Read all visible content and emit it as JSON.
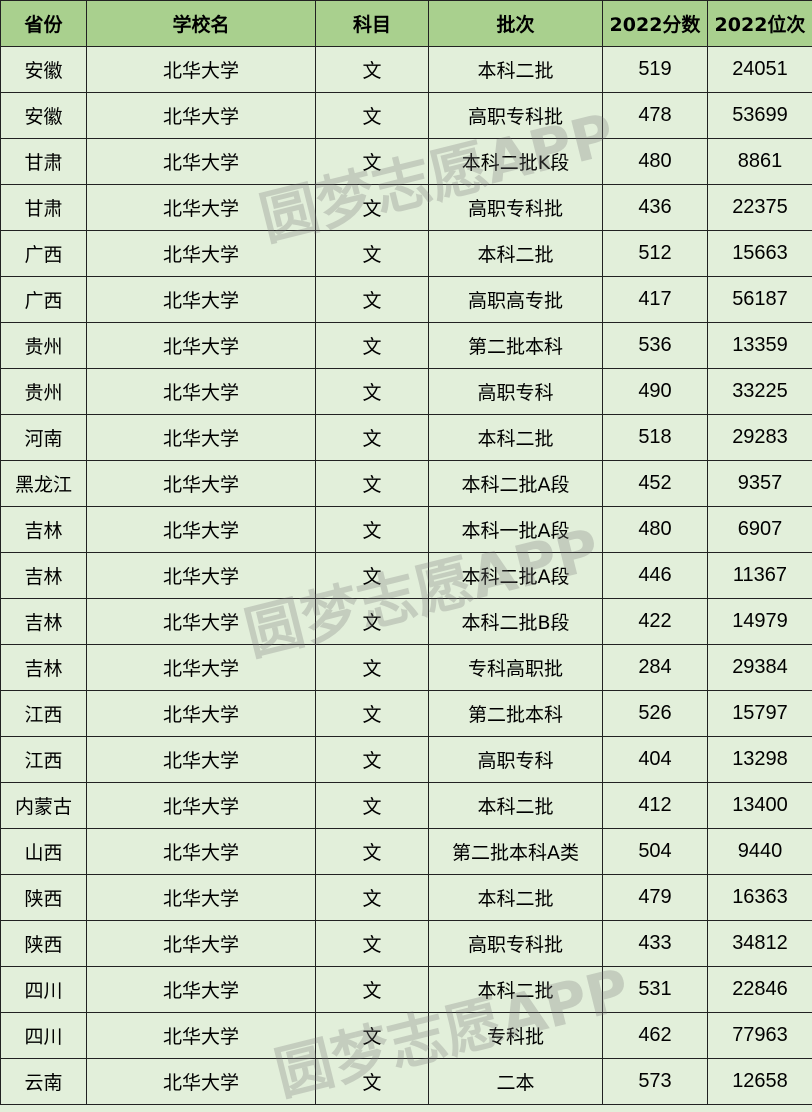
{
  "headers": [
    "省份",
    "学校名",
    "科目",
    "批次",
    "2022分数",
    "2022位次"
  ],
  "rows": [
    [
      "安徽",
      "北华大学",
      "文",
      "本科二批",
      "519",
      "24051"
    ],
    [
      "安徽",
      "北华大学",
      "文",
      "高职专科批",
      "478",
      "53699"
    ],
    [
      "甘肃",
      "北华大学",
      "文",
      "本科二批K段",
      "480",
      "8861"
    ],
    [
      "甘肃",
      "北华大学",
      "文",
      "高职专科批",
      "436",
      "22375"
    ],
    [
      "广西",
      "北华大学",
      "文",
      "本科二批",
      "512",
      "15663"
    ],
    [
      "广西",
      "北华大学",
      "文",
      "高职高专批",
      "417",
      "56187"
    ],
    [
      "贵州",
      "北华大学",
      "文",
      "第二批本科",
      "536",
      "13359"
    ],
    [
      "贵州",
      "北华大学",
      "文",
      "高职专科",
      "490",
      "33225"
    ],
    [
      "河南",
      "北华大学",
      "文",
      "本科二批",
      "518",
      "29283"
    ],
    [
      "黑龙江",
      "北华大学",
      "文",
      "本科二批A段",
      "452",
      "9357"
    ],
    [
      "吉林",
      "北华大学",
      "文",
      "本科一批A段",
      "480",
      "6907"
    ],
    [
      "吉林",
      "北华大学",
      "文",
      "本科二批A段",
      "446",
      "11367"
    ],
    [
      "吉林",
      "北华大学",
      "文",
      "本科二批B段",
      "422",
      "14979"
    ],
    [
      "吉林",
      "北华大学",
      "文",
      "专科高职批",
      "284",
      "29384"
    ],
    [
      "江西",
      "北华大学",
      "文",
      "第二批本科",
      "526",
      "15797"
    ],
    [
      "江西",
      "北华大学",
      "文",
      "高职专科",
      "404",
      "13298"
    ],
    [
      "内蒙古",
      "北华大学",
      "文",
      "本科二批",
      "412",
      "13400"
    ],
    [
      "山西",
      "北华大学",
      "文",
      "第二批本科A类",
      "504",
      "9440"
    ],
    [
      "陕西",
      "北华大学",
      "文",
      "本科二批",
      "479",
      "16363"
    ],
    [
      "陕西",
      "北华大学",
      "文",
      "高职专科批",
      "433",
      "34812"
    ],
    [
      "四川",
      "北华大学",
      "文",
      "本科二批",
      "531",
      "22846"
    ],
    [
      "四川",
      "北华大学",
      "文",
      "专科批",
      "462",
      "77963"
    ],
    [
      "云南",
      "北华大学",
      "文",
      "二本",
      "573",
      "12658"
    ]
  ],
  "watermark": "圆梦志愿APP",
  "colors": {
    "header_bg": "#a9d08e",
    "body_bg": "#e2efda"
  }
}
